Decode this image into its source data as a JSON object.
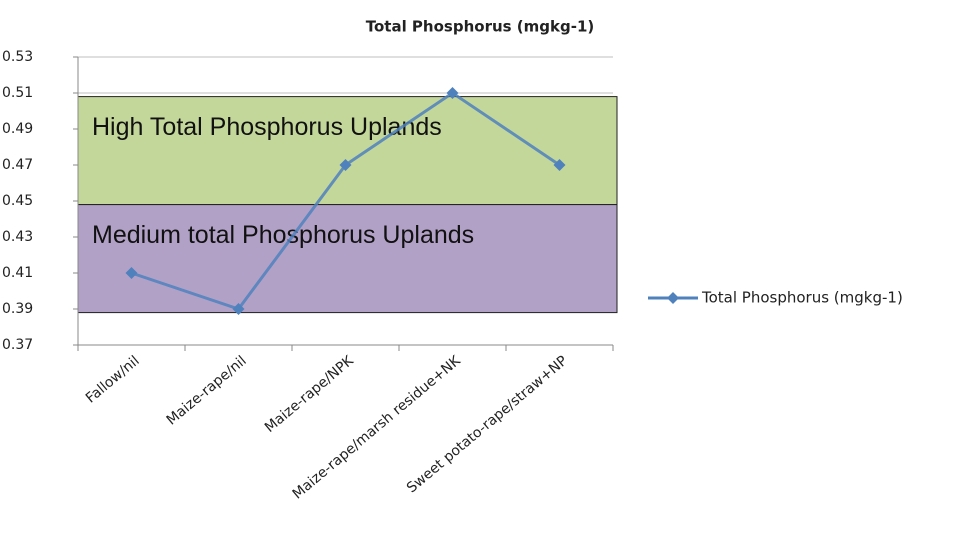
{
  "chart_data": {
    "type": "line",
    "title": "Total Phosphorus (mgkg-1)",
    "categories": [
      "Fallow/nil",
      "Maize-rape/nil",
      "Maize-rape/NPK",
      "Maize-rape/marsh residue+NK",
      "Sweet potato-rape/straw+NP"
    ],
    "series": [
      {
        "name": "Total Phosphorus (mgkg-1)",
        "color": "#4f81bd",
        "values": [
          0.41,
          0.39,
          0.47,
          0.51,
          0.47
        ]
      }
    ],
    "bands": [
      {
        "label": "High Total Phosphorus Uplands",
        "from": 0.448,
        "to": 0.508,
        "color": "#c4d79b"
      },
      {
        "label": "Medium total Phosphorus Uplands",
        "from": 0.388,
        "to": 0.448,
        "color": "#b2a1c7"
      }
    ],
    "ylim": [
      0.37,
      0.53
    ],
    "yticks": [
      0.37,
      0.39,
      0.41,
      0.43,
      0.45,
      0.47,
      0.49,
      0.51,
      0.53
    ],
    "grid": true,
    "legend": "right"
  }
}
